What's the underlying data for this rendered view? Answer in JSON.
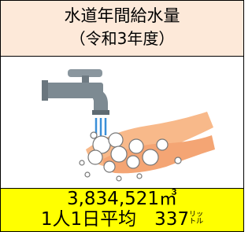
{
  "header": {
    "title": "水道年間給水量",
    "subtitle": "（令和3年度）"
  },
  "stats": {
    "total": "3,834,521㎥",
    "per_capita_label": "1人1日平均",
    "per_capita_value": "337",
    "per_capita_unit": [
      "リッ",
      "トル"
    ]
  }
}
